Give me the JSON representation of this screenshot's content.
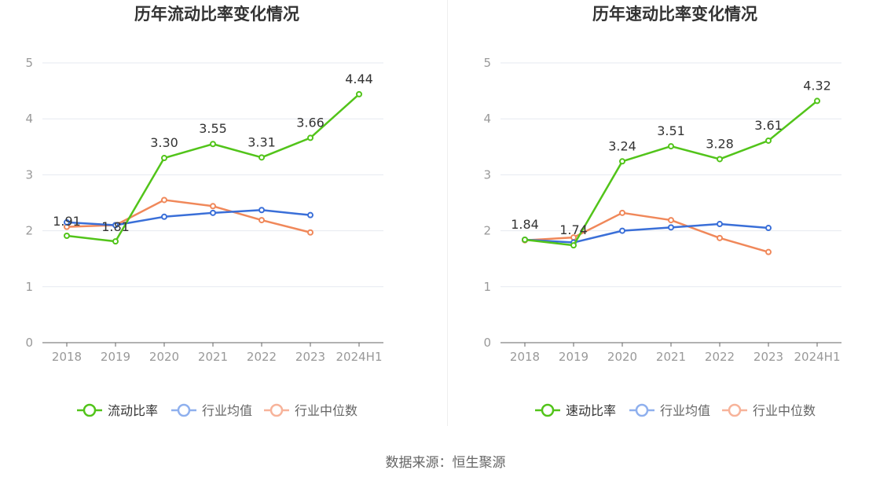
{
  "colors": {
    "main_series": "#52c41a",
    "industry_avg": "#3a6fd8",
    "industry_median": "#f0885a",
    "legend_avg": "#8fb0ee",
    "legend_median": "#f7b39a",
    "axis_text": "#999999",
    "label_text": "#333333",
    "gridline": "#e6e9f0"
  },
  "chart_data": [
    {
      "type": "line",
      "title": "历年流动比率变化情况",
      "categories": [
        "2018",
        "2019",
        "2020",
        "2021",
        "2022",
        "2023",
        "2024H1"
      ],
      "y_ticks": [
        "0",
        "1",
        "2",
        "3",
        "4",
        "5"
      ],
      "ylim": [
        0,
        5
      ],
      "grid": true,
      "legend_position": "bottom",
      "series": [
        {
          "name": "流动比率",
          "values": [
            1.91,
            1.81,
            3.3,
            3.55,
            3.31,
            3.66,
            4.44
          ],
          "labels": [
            "1.91",
            "1.81",
            "3.30",
            "3.55",
            "3.31",
            "3.66",
            "4.44"
          ]
        },
        {
          "name": "行业均值",
          "values": [
            2.15,
            2.1,
            2.25,
            2.32,
            2.37,
            2.28,
            null
          ]
        },
        {
          "name": "行业中位数",
          "values": [
            2.07,
            2.1,
            2.55,
            2.44,
            2.19,
            1.97,
            null
          ]
        }
      ]
    },
    {
      "type": "line",
      "title": "历年速动比率变化情况",
      "categories": [
        "2018",
        "2019",
        "2020",
        "2021",
        "2022",
        "2023",
        "2024H1"
      ],
      "y_ticks": [
        "0",
        "1",
        "2",
        "3",
        "4",
        "5"
      ],
      "ylim": [
        0,
        5
      ],
      "grid": true,
      "legend_position": "bottom",
      "series": [
        {
          "name": "速动比率",
          "values": [
            1.84,
            1.74,
            3.24,
            3.51,
            3.28,
            3.61,
            4.32
          ],
          "labels": [
            "1.84",
            "1.74",
            "3.24",
            "3.51",
            "3.28",
            "3.61",
            "4.32"
          ]
        },
        {
          "name": "行业均值",
          "values": [
            1.84,
            1.79,
            2.0,
            2.06,
            2.12,
            2.05,
            null
          ]
        },
        {
          "name": "行业中位数",
          "values": [
            1.83,
            1.88,
            2.32,
            2.19,
            1.87,
            1.62,
            null
          ]
        }
      ]
    }
  ],
  "footer": {
    "source": "数据来源：恒生聚源"
  }
}
